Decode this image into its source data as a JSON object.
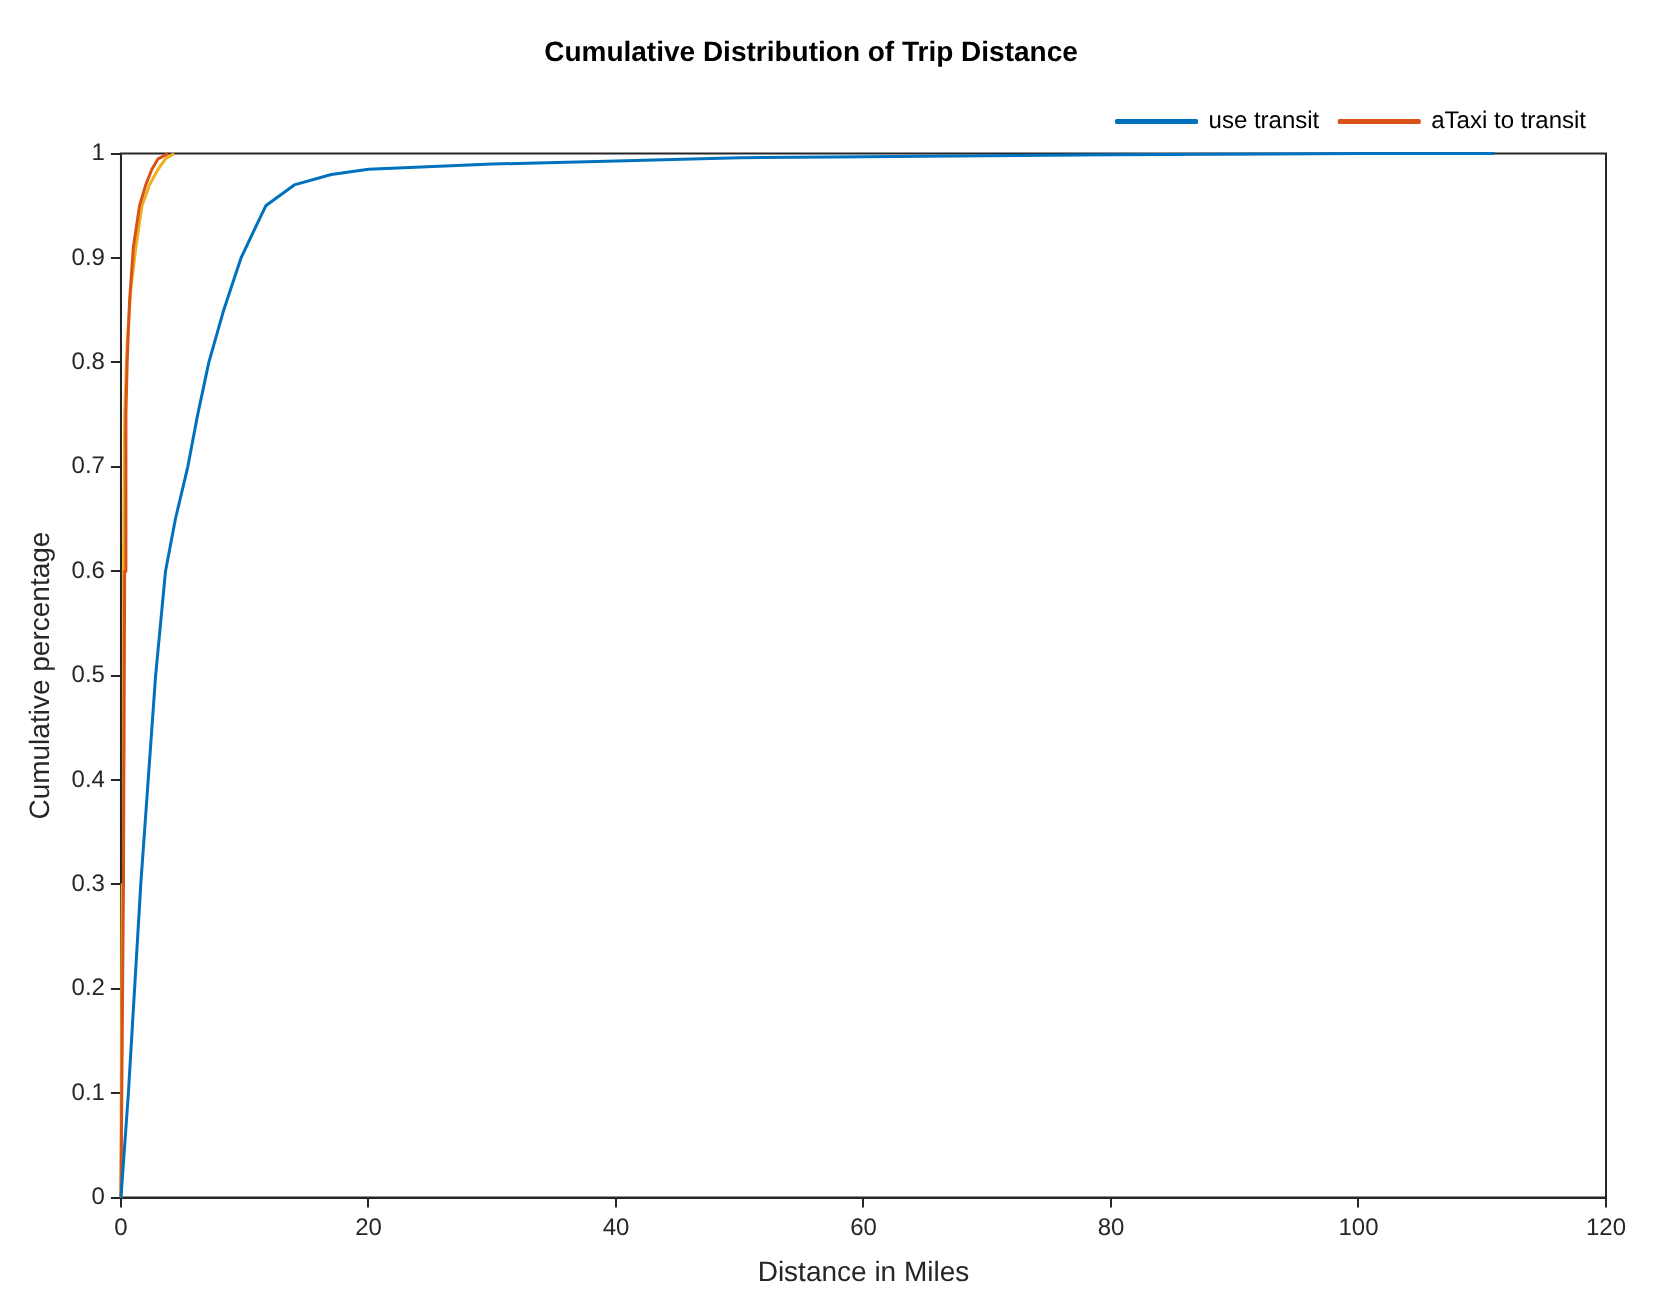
{
  "chart_data": {
    "type": "line",
    "title": "Cumulative Distribution of Trip Distance",
    "xlabel": "Distance in Miles",
    "ylabel": "Cumulative percentage",
    "xlim": [
      0,
      120
    ],
    "xticks": [
      0,
      20,
      40,
      60,
      80,
      100,
      120
    ],
    "ylim": [
      0,
      1
    ],
    "yticks": [
      0,
      0.1,
      0.2,
      0.3,
      0.4,
      0.5,
      0.6,
      0.7,
      0.8,
      0.9,
      1
    ],
    "series": [
      {
        "name": "use transit",
        "color": "#0072bd",
        "x": [
          0,
          0.6,
          1.1,
          1.6,
          2.2,
          2.8,
          3.6,
          4.4,
          5.4,
          6.2,
          7.1,
          8.3,
          9.7,
          11.7,
          14,
          17,
          20,
          30,
          40,
          50,
          60,
          80,
          100,
          111
        ],
        "values": [
          0,
          0.1,
          0.2,
          0.3,
          0.4,
          0.5,
          0.6,
          0.65,
          0.7,
          0.75,
          0.8,
          0.85,
          0.9,
          0.95,
          0.97,
          0.98,
          0.985,
          0.99,
          0.993,
          0.996,
          0.997,
          0.999,
          1,
          1
        ]
      },
      {
        "name": "aTaxi to transit",
        "color": "#d95319",
        "x": [
          0,
          0.2,
          0.3,
          0.4,
          0.5,
          0.7,
          1,
          1.5,
          2,
          2.5,
          3,
          3.8
        ],
        "values": [
          0,
          0.3,
          0.6,
          0.75,
          0.8,
          0.86,
          0.91,
          0.95,
          0.97,
          0.985,
          0.995,
          1
        ]
      },
      {
        "color": "#edb120",
        "x": [
          0,
          0.1,
          0.2,
          0.3,
          0.5,
          0.8,
          1.2,
          1.7,
          2.3,
          3,
          3.6,
          4.3
        ],
        "values": [
          0,
          0.3,
          0.6,
          0.75,
          0.82,
          0.87,
          0.91,
          0.95,
          0.97,
          0.985,
          0.995,
          1
        ]
      }
    ],
    "legend": "top right",
    "grid": false
  }
}
